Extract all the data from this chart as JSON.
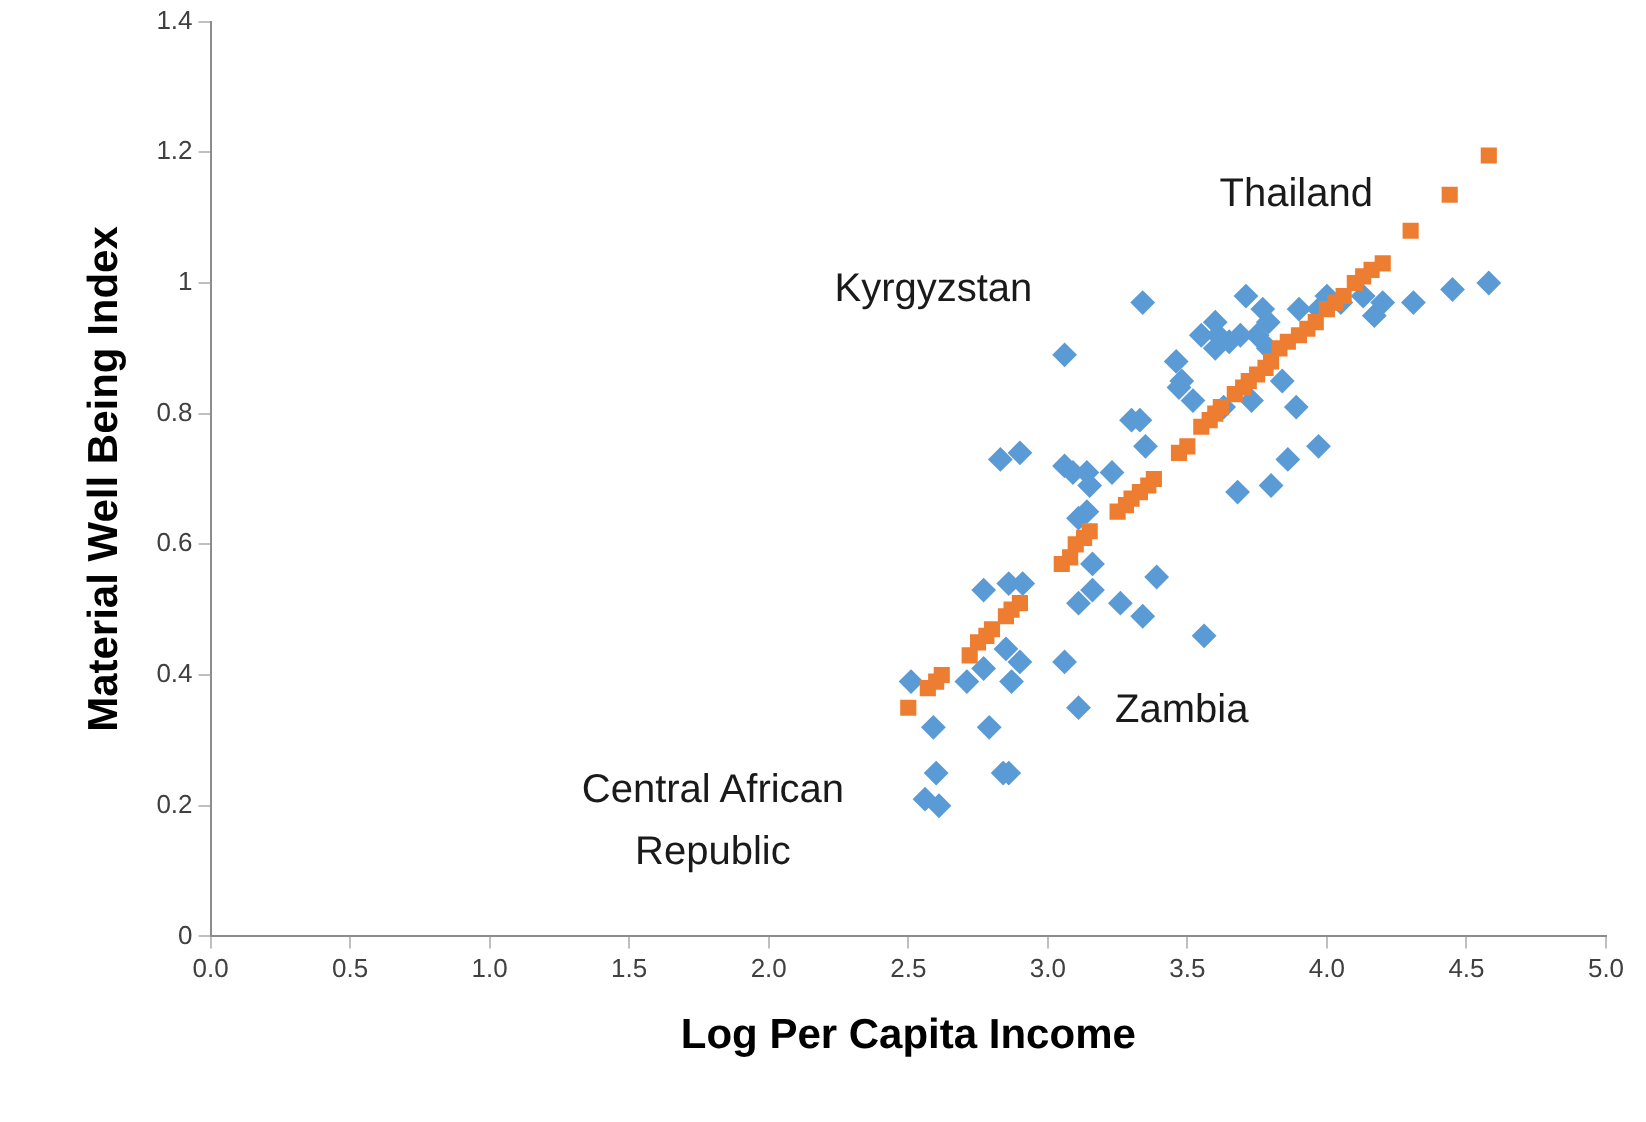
{
  "chart_data": {
    "type": "scatter",
    "xlabel": "Log Per Capita Income",
    "ylabel": "Material Well Being Index",
    "xlim": [
      0,
      5
    ],
    "ylim": [
      0,
      1.4
    ],
    "xticks": [
      {
        "value": 0,
        "label": "0.0"
      },
      {
        "value": 0.5,
        "label": "0.5"
      },
      {
        "value": 1,
        "label": "1.0"
      },
      {
        "value": 1.5,
        "label": "1.5"
      },
      {
        "value": 2,
        "label": "2.0"
      },
      {
        "value": 2.5,
        "label": "2.5"
      },
      {
        "value": 3,
        "label": "3.0"
      },
      {
        "value": 3.5,
        "label": "3.5"
      },
      {
        "value": 4,
        "label": "4.0"
      },
      {
        "value": 4.5,
        "label": "4.5"
      },
      {
        "value": 5,
        "label": "5.0"
      }
    ],
    "yticks": [
      0,
      0.2,
      0.4,
      0.6,
      0.8,
      1,
      1.2,
      1.4
    ],
    "grid": false,
    "legend": false,
    "series": [
      {
        "color": "#5b9bd5",
        "marker": "diamond",
        "x": [
          2.51,
          2.59,
          2.6,
          2.56,
          2.61,
          2.71,
          2.77,
          2.77,
          2.79,
          2.83,
          2.9,
          2.84,
          2.86,
          2.85,
          2.87,
          2.9,
          2.86,
          2.91,
          3.06,
          3.06,
          3.09,
          3.06,
          3.11,
          3.11,
          3.14,
          3.15,
          3.14,
          3.16,
          3.16,
          3.11,
          3.26,
          3.3,
          3.33,
          3.35,
          3.34,
          3.39,
          3.34,
          3.46,
          3.48,
          3.47,
          3.56,
          3.55,
          3.6,
          3.6,
          3.61,
          3.65,
          3.69,
          3.71,
          3.73,
          3.68,
          3.75,
          3.77,
          3.79,
          3.8,
          3.84,
          3.89,
          3.86,
          3.97,
          3.9,
          3.97,
          4.0,
          4.05,
          4.13,
          4.17,
          4.2,
          4.31,
          4.45,
          4.58,
          3.79,
          3.52,
          3.23,
          3.63
        ],
        "values": [
          0.39,
          0.32,
          0.25,
          0.21,
          0.2,
          0.39,
          0.41,
          0.53,
          0.32,
          0.73,
          0.74,
          0.25,
          0.25,
          0.44,
          0.39,
          0.42,
          0.54,
          0.54,
          0.89,
          0.72,
          0.71,
          0.42,
          0.35,
          0.51,
          0.71,
          0.69,
          0.65,
          0.57,
          0.53,
          0.64,
          0.51,
          0.79,
          0.79,
          0.75,
          0.49,
          0.55,
          0.97,
          0.88,
          0.85,
          0.84,
          0.46,
          0.92,
          0.94,
          0.9,
          0.92,
          0.91,
          0.92,
          0.98,
          0.82,
          0.68,
          0.92,
          0.96,
          0.94,
          0.69,
          0.85,
          0.81,
          0.73,
          0.75,
          0.96,
          0.96,
          0.98,
          0.97,
          0.98,
          0.95,
          0.97,
          0.97,
          0.99,
          1.0,
          0.9,
          0.82,
          0.71,
          0.81
        ]
      },
      {
        "color": "#ed7d31",
        "marker": "square",
        "x": [
          2.5,
          2.57,
          2.6,
          2.62,
          2.72,
          2.75,
          2.78,
          2.8,
          2.85,
          2.87,
          2.9,
          3.05,
          3.08,
          3.1,
          3.13,
          3.15,
          3.25,
          3.28,
          3.3,
          3.33,
          3.36,
          3.38,
          3.47,
          3.5,
          3.55,
          3.58,
          3.6,
          3.62,
          3.67,
          3.7,
          3.72,
          3.75,
          3.78,
          3.8,
          3.83,
          3.86,
          3.9,
          3.93,
          3.96,
          4.0,
          4.03,
          4.06,
          4.1,
          4.13,
          4.16,
          4.2,
          4.3,
          4.44,
          4.58
        ],
        "values": [
          0.35,
          0.38,
          0.39,
          0.4,
          0.43,
          0.45,
          0.46,
          0.47,
          0.49,
          0.5,
          0.51,
          0.57,
          0.58,
          0.6,
          0.61,
          0.62,
          0.65,
          0.66,
          0.67,
          0.68,
          0.69,
          0.7,
          0.74,
          0.75,
          0.78,
          0.79,
          0.8,
          0.81,
          0.83,
          0.84,
          0.85,
          0.86,
          0.87,
          0.88,
          0.9,
          0.91,
          0.92,
          0.93,
          0.94,
          0.96,
          0.97,
          0.98,
          1.0,
          1.01,
          1.02,
          1.03,
          1.08,
          1.135,
          1.195
        ]
      }
    ],
    "annotations": [
      "Thailand",
      "Kyrgyzstan",
      "Zambia",
      "Central African\nRepublic"
    ]
  }
}
